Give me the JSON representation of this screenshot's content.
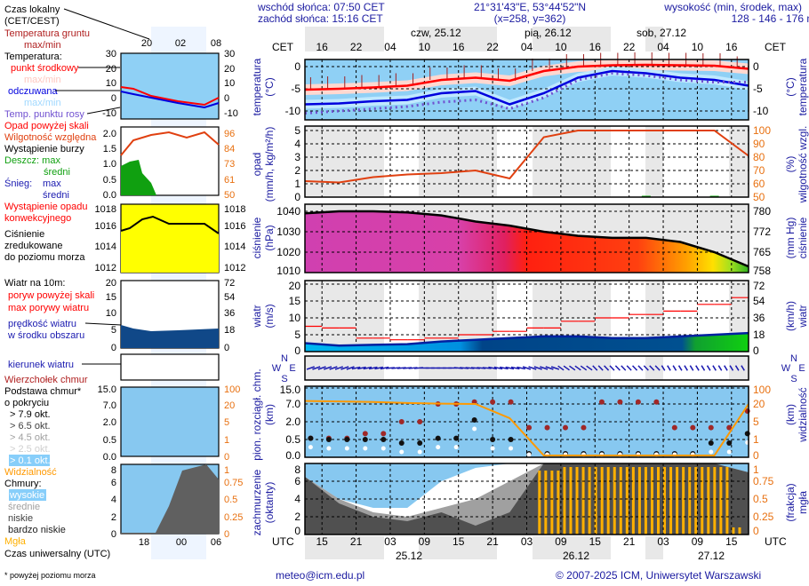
{
  "header": {
    "sunrise": "wschód słońca: 07:50 CET",
    "sunset": "zachód słońca: 15:16 CET",
    "coords": "21°31'43\"E, 53°44'52\"N",
    "grid": "(x=258,  y=362)",
    "elevation_title": "wysokość (min, środek, max)",
    "elevation": "128 - 146 - 176 m"
  },
  "time_axis": {
    "top_zone": "CET",
    "bottom_zone": "UTC",
    "cet_labels": [
      "16",
      "22",
      "04",
      "10",
      "16",
      "22",
      "04",
      "10",
      "16",
      "22",
      "04",
      "10",
      "16"
    ],
    "utc_labels": [
      "15",
      "21",
      "03",
      "09",
      "15",
      "21",
      "03",
      "09",
      "15",
      "21",
      "03",
      "09",
      "15"
    ],
    "top_days": [
      "czw, 25.12",
      "pią, 26.12",
      "sob, 27.12"
    ],
    "bottom_dates": [
      "25.12",
      "26.12",
      "27.12"
    ]
  },
  "legend": {
    "local_time": "Czas lokalny",
    "local_time_zone": "(CET/CEST)",
    "ground_temp": "Temperatura gruntu",
    "ground_temp_mm": "max/min",
    "temperature": "Temperatura:",
    "midpoint": "punkt środkowy",
    "midpoint_mm": "max/min",
    "feels_like": "odczuwana",
    "feels_like_mm": "max/min",
    "dew_point": "Temp. punktu rosy",
    "precip_above": "Opad powyżej skali",
    "humidity": "Wilgotność względna",
    "storm": "Wystąpienie burzy",
    "rain_max": "Deszcz: max",
    "rain_avg": "średni",
    "snow_label": "Śnieg:",
    "snow_max": "max",
    "snow_avg": "średni",
    "convective_1": "Wystąpienie opadu",
    "convective_2": "konwekcyjnego",
    "pressure_1": "Ciśnienie",
    "pressure_2": "zredukowane",
    "pressure_3": "do poziomu morza",
    "wind_title": "Wiatr na 10m:",
    "gust_above": "poryw powyżej skali",
    "gust_max": "max porywy wiatru",
    "wind_speed_1": "prędkość wiatru",
    "wind_speed_2": "w środku obszaru",
    "wind_dir": "kierunek wiatru",
    "cloud_top": "Wierzchołek chmur",
    "cloud_base_1": "Podstawa chmur*",
    "cloud_base_2": "o pokryciu",
    "okt": [
      "> 7.9 okt.",
      "> 6.5 okt.",
      "> 4.5 okt.",
      "> 2.5 okt.",
      "> 0.1 okt."
    ],
    "visibility": "Widzialność",
    "clouds": "Chmury:",
    "high": "wysokie",
    "medium": "średnie",
    "low": "niskie",
    "very_low": "bardzo niskie",
    "fog": "Mgła",
    "utc": "Czas uniwersalny (UTC)",
    "footnote": "* powyżej poziomu morza",
    "mini_top_times": [
      "20",
      "02",
      "08"
    ],
    "mini_bottom_times": [
      "18",
      "00",
      "06"
    ],
    "mini_axes": {
      "temp": [
        "30",
        "20",
        "10",
        "0",
        "-10"
      ],
      "precip": [
        "2.0",
        "1.5",
        "1.0",
        "0.5",
        "0.0"
      ],
      "humidity": [
        "96",
        "84",
        "73",
        "61",
        "50"
      ],
      "pressure": [
        "1018",
        "1016",
        "1014",
        "1012"
      ],
      "wind_ms": [
        "20",
        "15",
        "10",
        "5",
        "0"
      ],
      "wind_kmh": [
        "72",
        "54",
        "36",
        "18",
        "0"
      ],
      "cloud_km": [
        "15.0",
        "7.0",
        "2.0",
        "0.5",
        "0.0"
      ],
      "vis_km": [
        "100",
        "20",
        "5",
        "1",
        "0"
      ],
      "cover": [
        "8",
        "6",
        "4",
        "2",
        "0"
      ],
      "fog": [
        "1",
        "0.75",
        "0.5",
        "0.25",
        "0"
      ]
    }
  },
  "panels": {
    "temp": {
      "left_title": [
        "temperatura",
        "(°C)"
      ],
      "right_title": [
        "(°C)",
        "temperatura"
      ],
      "left_ticks": [
        "0",
        "-5",
        "-10"
      ],
      "right_ticks": [
        "0",
        "-5",
        "-10"
      ]
    },
    "precip": {
      "left_title": [
        "opad",
        "(mm/h, kg/m²/h)"
      ],
      "right_title": [
        "(%)",
        "wilgotność wzgl."
      ],
      "left_ticks": [
        "5",
        "4",
        "3",
        "2",
        "1",
        "0"
      ],
      "right_ticks": [
        "100",
        "90",
        "80",
        "70",
        "60",
        "50"
      ]
    },
    "pressure": {
      "left_title": [
        "ciśnienie",
        "(hPa)"
      ],
      "right_title": [
        "(mm Hg)",
        "ciśnienie"
      ],
      "left_ticks": [
        "1040",
        "1030",
        "1020",
        "1010"
      ],
      "right_ticks": [
        "780",
        "772",
        "765",
        "758"
      ]
    },
    "wind": {
      "left_title": [
        "wiatr",
        "(m/s)"
      ],
      "right_title": [
        "(km/h)",
        "wiatr"
      ],
      "left_ticks": [
        "20",
        "15",
        "10",
        "5",
        "0"
      ],
      "right_ticks": [
        "72",
        "54",
        "36",
        "18",
        "0"
      ]
    },
    "wind_dir": {
      "compass": [
        "N",
        "W",
        "E",
        "S"
      ]
    },
    "cloud_base": {
      "left_title": [
        "pion. rozciągł. chm.",
        "(km)"
      ],
      "right_title": [
        "(km)",
        "widzialność"
      ],
      "left_ticks": [
        "15.0",
        "7.0",
        "2.0",
        "0.5",
        "0.0"
      ],
      "right_ticks": [
        "100",
        "20",
        "5",
        "1",
        "0"
      ]
    },
    "cover": {
      "left_title": [
        "zachmurzenie",
        "(oktanty)"
      ],
      "right_title": [
        "(frakcja)",
        "mgła"
      ],
      "left_ticks": [
        "8",
        "6",
        "4",
        "2",
        "0"
      ],
      "right_ticks": [
        "1",
        "0.75",
        "0.5",
        "0.25",
        "0"
      ]
    }
  },
  "footer": {
    "email": "meteo@icm.edu.pl",
    "copyright": "© 2007-2025 ICM, Uniwersytet Warszawski"
  },
  "colors": {
    "temp": "#ff0000",
    "feels": "#0000dd",
    "dew": "#7050d0",
    "humidity": "#e04010",
    "pressure_line": "#000000",
    "gust": "#ff0000",
    "wind_line": "#0020a0",
    "cloud_top": "#a02828",
    "visibility": "#ff9900",
    "fog": "#ffb000",
    "sky": "#87cefa",
    "night_band": "#e8e8e8"
  },
  "chart_data": {
    "type": "line",
    "title": "",
    "x_hours_cet": "24.12 13:00 to 27.12 19:00",
    "x": [
      "24.12 13",
      "24.12 19",
      "25.12 01",
      "25.12 07",
      "25.12 13",
      "25.12 19",
      "26.12 01",
      "26.12 07",
      "26.12 13",
      "26.12 19",
      "27.12 01",
      "27.12 07",
      "27.12 13",
      "27.12 19"
    ],
    "series": [
      {
        "name": "punkt środkowy",
        "unit": "°C",
        "values": [
          -5.2,
          -5,
          -4.7,
          -4.3,
          -3,
          -2.5,
          -3.2,
          -1,
          0,
          0.3,
          0.4,
          0.3,
          0.2,
          -0.5
        ]
      },
      {
        "name": "odczuwana",
        "unit": "°C",
        "values": [
          -8.5,
          -8.3,
          -7.8,
          -7.5,
          -6,
          -5.5,
          -8.5,
          -6,
          -2.5,
          -1,
          -1.5,
          -2.5,
          -3,
          -4.3
        ]
      },
      {
        "name": "Temp. punktu rosy",
        "unit": "°C",
        "values": [
          -10.5,
          -10,
          -9.5,
          -9,
          -8,
          -7.5,
          -9.5,
          -7,
          -3,
          -1.5,
          -2,
          -3,
          -3.5,
          -3.5
        ]
      },
      {
        "name": "Wilgotność względna",
        "unit": "%",
        "values": [
          62,
          61,
          65,
          67,
          68,
          70,
          64,
          95,
          100,
          100,
          100,
          100,
          100,
          81
        ]
      },
      {
        "name": "Ciśnienie",
        "unit": "hPa",
        "values": [
          1039,
          1040,
          1040,
          1039.5,
          1038,
          1035,
          1033,
          1030,
          1028,
          1027,
          1027,
          1025,
          1020,
          1013
        ]
      },
      {
        "name": "prędkość wiatru",
        "unit": "m/s",
        "values": [
          2.5,
          1.8,
          2,
          2.2,
          3,
          3.5,
          4,
          4.5,
          4.5,
          4,
          4,
          4.5,
          5,
          5.5
        ]
      },
      {
        "name": "max porywy wiatru",
        "unit": "m/s",
        "values": [
          7.5,
          7,
          4,
          3.5,
          4,
          5,
          6,
          7,
          9,
          10,
          11,
          12,
          14,
          16
        ]
      },
      {
        "name": "kierunek wiatru",
        "unit": "deg",
        "values": [
          60,
          60,
          70,
          80,
          90,
          100,
          110,
          120,
          140,
          150,
          150,
          160,
          160,
          160
        ]
      },
      {
        "name": "Widzialność",
        "unit": "km",
        "values": [
          35,
          33,
          30,
          25,
          22,
          20,
          8,
          0.1,
          0.1,
          0.1,
          0.1,
          0.1,
          0.1,
          20
        ]
      },
      {
        "name": "Wierzchołek chmur",
        "unit": "km",
        "values": [
          0.6,
          0.6,
          1,
          2,
          7,
          8,
          8,
          1.5,
          1.5,
          8,
          8,
          1.5,
          1.5,
          5
        ]
      },
      {
        "name": "Podstawa chmur",
        "unit": "km",
        "values": [
          0.6,
          0.5,
          0.5,
          0.4,
          0.6,
          2.5,
          0.5,
          0.1,
          0.1,
          0.1,
          0.1,
          0.1,
          0.4,
          1
        ]
      },
      {
        "name": "niskie",
        "unit": "okt",
        "values": [
          6.5,
          3.5,
          2,
          1.5,
          2.5,
          1,
          2.5,
          8,
          8,
          8,
          8,
          8,
          8,
          7
        ]
      },
      {
        "name": "średnie",
        "unit": "okt",
        "values": [
          6.5,
          4,
          2.5,
          2,
          3,
          4,
          6,
          8,
          8,
          8,
          8,
          8,
          8,
          7
        ]
      },
      {
        "name": "wysokie",
        "unit": "okt",
        "values": [
          6.5,
          4,
          3,
          3,
          6,
          7.5,
          8,
          8,
          8,
          8,
          8,
          8,
          8,
          7
        ]
      },
      {
        "name": "Mgła",
        "unit": "frakcja",
        "values": [
          0,
          0,
          0,
          0,
          0,
          0,
          0,
          0.9,
          0.95,
          0.95,
          0.95,
          0.95,
          0.95,
          0.1
        ]
      },
      {
        "name": "opad",
        "unit": "mm/h",
        "values": [
          0,
          0,
          0,
          0,
          0,
          0,
          0,
          0,
          0,
          0,
          0.1,
          0,
          0.1,
          0
        ]
      }
    ]
  }
}
